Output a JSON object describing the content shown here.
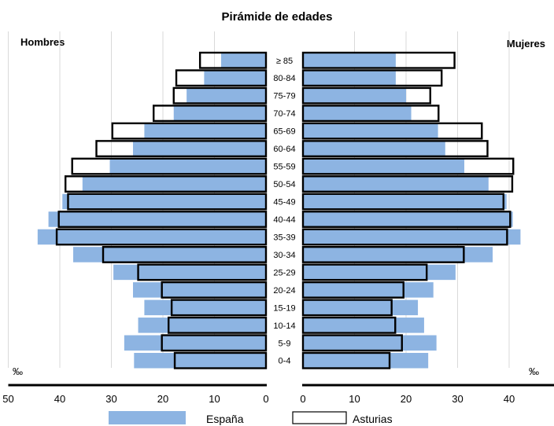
{
  "chart_data": {
    "type": "bar",
    "orientation": "horizontal-pyramid",
    "title": "Pirámide de edades",
    "left_label": "Hombres",
    "right_label": "Mujeres",
    "unit": "‰",
    "categories": [
      "≥ 85",
      "80-84",
      "75-79",
      "70-74",
      "65-69",
      "60-64",
      "55-59",
      "50-54",
      "45-49",
      "40-44",
      "35-39",
      "30-34",
      "25-29",
      "20-24",
      "15-19",
      "10-14",
      "5-9",
      "0-4"
    ],
    "xlim": [
      0,
      50
    ],
    "x_ticks": [
      "50",
      "40",
      "30",
      "20",
      "10",
      "0"
    ],
    "x_ticks_right": [
      "0",
      "10",
      "20",
      "30",
      "40",
      "50"
    ],
    "grid": true,
    "legend_position": "bottom",
    "series": [
      {
        "name": "España",
        "style": "filled",
        "color": "#8db4e2",
        "men": [
          8.7,
          12,
          15.4,
          17.9,
          23.6,
          25.8,
          30.3,
          35.6,
          39.5,
          42.2,
          44.3,
          37.4,
          29.6,
          25.8,
          23.6,
          24.8,
          27.5,
          25.6
        ],
        "women": [
          18,
          18,
          20,
          21,
          26.2,
          27.6,
          31.3,
          36,
          39.5,
          40.7,
          42.2,
          36.8,
          29.6,
          25.3,
          22.3,
          23.5,
          25.9,
          24.3
        ]
      },
      {
        "name": "Asturias",
        "style": "outline",
        "color": "#000000",
        "men": [
          12.8,
          17.4,
          17.9,
          21.8,
          29.8,
          32.9,
          37.6,
          38.9,
          38.4,
          40.2,
          40.6,
          31.6,
          24.8,
          20.2,
          18.3,
          18.9,
          20.2,
          17.7
        ],
        "women": [
          29.4,
          26.9,
          24.7,
          26.3,
          34.7,
          35.8,
          40.8,
          40.6,
          38.9,
          40.2,
          39.6,
          31.2,
          24,
          19.5,
          17.2,
          17.9,
          19.2,
          16.8
        ]
      }
    ]
  }
}
